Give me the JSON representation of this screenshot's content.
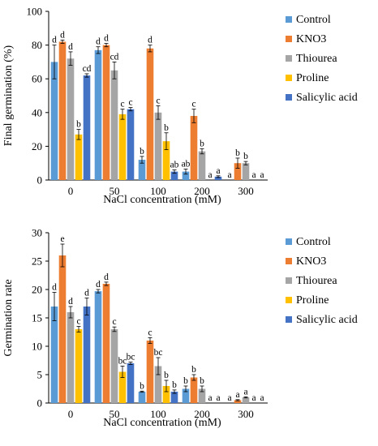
{
  "colors": {
    "Control": "#5b9bd5",
    "KNO3": "#ed7d31",
    "Thiourea": "#a5a5a5",
    "Proline": "#ffc000",
    "Salicylic acid": "#4472c4",
    "axis": "#000000"
  },
  "chart_data": [
    {
      "type": "bar",
      "xlabel": "NaCl concentration (mM)",
      "ylabel": "Final germination (%)",
      "ylim": [
        0,
        100
      ],
      "yticks": [
        0,
        20,
        40,
        60,
        80,
        100
      ],
      "categories": [
        "0",
        "50",
        "100",
        "200",
        "300"
      ],
      "legend_position": "top-right",
      "series": [
        {
          "name": "Control",
          "values": [
            70,
            77,
            12,
            5,
            0
          ],
          "errors": [
            10,
            2,
            2,
            1.5,
            0
          ],
          "letters": [
            "d",
            "d",
            "b",
            "ab",
            "a"
          ]
        },
        {
          "name": "KNO3",
          "values": [
            82,
            80,
            78,
            38,
            10
          ],
          "errors": [
            1,
            1,
            2,
            4,
            3
          ],
          "letters": [
            "d",
            "d",
            "d",
            "c",
            "b"
          ]
        },
        {
          "name": "Thiourea",
          "values": [
            72,
            65,
            40,
            17,
            10
          ],
          "errors": [
            4,
            5,
            4,
            1.5,
            1
          ],
          "letters": [
            "d",
            "cd",
            "c",
            "b",
            "b"
          ]
        },
        {
          "name": "Proline",
          "values": [
            27,
            39,
            23,
            0,
            0
          ],
          "errors": [
            3,
            3,
            5,
            0,
            0
          ],
          "letters": [
            "b",
            "c",
            "b",
            "a",
            "a"
          ]
        },
        {
          "name": "Salicylic acid",
          "values": [
            62,
            42,
            5,
            2,
            0
          ],
          "errors": [
            1,
            1,
            1,
            0.5,
            0
          ],
          "letters": [
            "cd",
            "c",
            "ab",
            "a",
            "a"
          ]
        }
      ]
    },
    {
      "type": "bar",
      "xlabel": "NaCl concentration  (mM)",
      "ylabel": "Germination rate",
      "ylim": [
        0,
        30
      ],
      "yticks": [
        0,
        5,
        10,
        15,
        20,
        25,
        30
      ],
      "categories": [
        "0",
        "50",
        "100",
        "200",
        "300"
      ],
      "legend_position": "top-right",
      "series": [
        {
          "name": "Control",
          "values": [
            17,
            19.7,
            2,
            2.5,
            0
          ],
          "errors": [
            2.5,
            0.3,
            0.1,
            0.5,
            0
          ],
          "letters": [
            "d",
            "d",
            "b",
            "b",
            "a"
          ]
        },
        {
          "name": "KNO3",
          "values": [
            26,
            21,
            11,
            4.5,
            0.5
          ],
          "errors": [
            2,
            0.3,
            0.5,
            0.5,
            0.1
          ],
          "letters": [
            "e",
            "d",
            "c",
            "b",
            "a"
          ]
        },
        {
          "name": "Thiourea",
          "values": [
            16,
            13,
            6.5,
            2.5,
            1
          ],
          "errors": [
            1,
            0.4,
            1.5,
            0.5,
            0.1
          ],
          "letters": [
            "d",
            "c",
            "bc",
            "b",
            "a"
          ]
        },
        {
          "name": "Proline",
          "values": [
            13,
            5.5,
            3,
            0,
            0
          ],
          "errors": [
            0.5,
            1,
            1,
            0,
            0
          ],
          "letters": [
            "c",
            "bc",
            "b",
            "a",
            "a"
          ]
        },
        {
          "name": "Salicylic acid",
          "values": [
            17,
            7,
            2,
            0,
            0
          ],
          "errors": [
            1.5,
            0.2,
            0.3,
            0,
            0
          ],
          "letters": [
            "d",
            "bc",
            "b",
            "a",
            "a"
          ]
        }
      ]
    }
  ]
}
